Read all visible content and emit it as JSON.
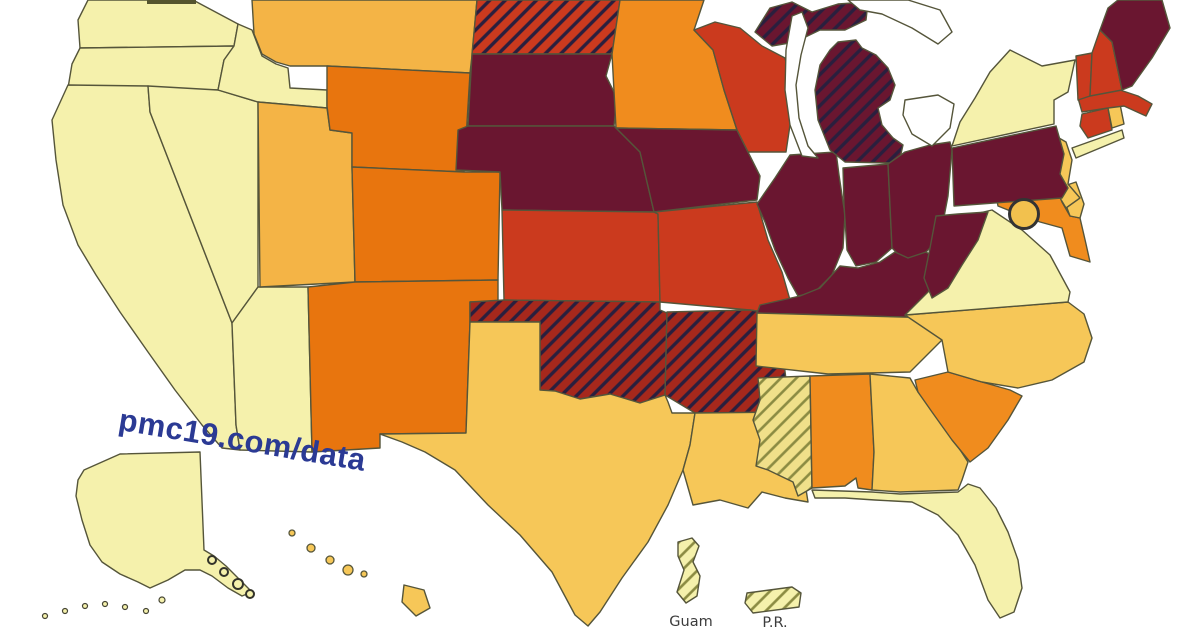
{
  "map_title": "United States choropleth map with territories",
  "watermark": {
    "text": "pmc19.com/data",
    "color": "#2B3A94"
  },
  "territories": {
    "guam": {
      "label": "Guam"
    },
    "pr": {
      "label": "P.R."
    }
  },
  "dc_marker": {
    "name": "District of Columbia",
    "fill": "#F2C14E",
    "stroke": "#333333"
  },
  "palette": {
    "pale_yellow": "#F5F1AC",
    "pale_gold": "#F0E08A",
    "gold": "#F6C758",
    "amber": "#F4B446",
    "orange": "#F08C1E",
    "dark_orange": "#E8750E",
    "red": "#CB3A1E",
    "dark_red": "#A6281C",
    "maroon": "#6A1630",
    "border": "#55553A",
    "hatch_dark": "#2A1F3E",
    "hatch_olive": "#8B8B42",
    "water": "#FFFFFF",
    "label": "#3C3C3C",
    "artifact": "#55552E"
  },
  "states": [
    {
      "id": "WA",
      "name": "Washington",
      "color_class": "pale_yellow",
      "hatched": false
    },
    {
      "id": "OR",
      "name": "Oregon",
      "color_class": "pale_yellow",
      "hatched": false
    },
    {
      "id": "CA",
      "name": "California",
      "color_class": "pale_yellow",
      "hatched": false
    },
    {
      "id": "NV",
      "name": "Nevada",
      "color_class": "pale_yellow",
      "hatched": false
    },
    {
      "id": "ID",
      "name": "Idaho",
      "color_class": "pale_yellow",
      "hatched": false
    },
    {
      "id": "AZ",
      "name": "Arizona",
      "color_class": "pale_yellow",
      "hatched": false
    },
    {
      "id": "MT",
      "name": "Montana",
      "color_class": "amber",
      "hatched": false
    },
    {
      "id": "UT",
      "name": "Utah",
      "color_class": "amber",
      "hatched": false
    },
    {
      "id": "WY",
      "name": "Wyoming",
      "color_class": "dark_orange",
      "hatched": false
    },
    {
      "id": "CO",
      "name": "Colorado",
      "color_class": "dark_orange",
      "hatched": false
    },
    {
      "id": "NM",
      "name": "New Mexico",
      "color_class": "dark_orange",
      "hatched": false
    },
    {
      "id": "ND",
      "name": "North Dakota",
      "color_class": "red",
      "hatched": true
    },
    {
      "id": "SD",
      "name": "South Dakota",
      "color_class": "maroon",
      "hatched": false
    },
    {
      "id": "NE",
      "name": "Nebraska",
      "color_class": "maroon",
      "hatched": false
    },
    {
      "id": "KS",
      "name": "Kansas",
      "color_class": "red",
      "hatched": false
    },
    {
      "id": "OK",
      "name": "Oklahoma",
      "color_class": "dark_red",
      "hatched": true
    },
    {
      "id": "TX",
      "name": "Texas",
      "color_class": "gold",
      "hatched": false
    },
    {
      "id": "MN",
      "name": "Minnesota",
      "color_class": "orange",
      "hatched": false
    },
    {
      "id": "IA",
      "name": "Iowa",
      "color_class": "maroon",
      "hatched": false
    },
    {
      "id": "MO",
      "name": "Missouri",
      "color_class": "red",
      "hatched": false
    },
    {
      "id": "AR",
      "name": "Arkansas",
      "color_class": "dark_red",
      "hatched": true
    },
    {
      "id": "LA",
      "name": "Louisiana",
      "color_class": "gold",
      "hatched": false
    },
    {
      "id": "WI",
      "name": "Wisconsin",
      "color_class": "red",
      "hatched": false
    },
    {
      "id": "IL",
      "name": "Illinois",
      "color_class": "maroon",
      "hatched": false
    },
    {
      "id": "MI",
      "name": "Michigan",
      "color_class": "maroon",
      "hatched": true
    },
    {
      "id": "IN",
      "name": "Indiana",
      "color_class": "maroon",
      "hatched": false
    },
    {
      "id": "OH",
      "name": "Ohio",
      "color_class": "maroon",
      "hatched": false
    },
    {
      "id": "KY",
      "name": "Kentucky",
      "color_class": "maroon",
      "hatched": false
    },
    {
      "id": "TN",
      "name": "Tennessee",
      "color_class": "gold",
      "hatched": false
    },
    {
      "id": "MS",
      "name": "Mississippi",
      "color_class": "pale_gold",
      "hatched": true
    },
    {
      "id": "AL",
      "name": "Alabama",
      "color_class": "orange",
      "hatched": false
    },
    {
      "id": "GA",
      "name": "Georgia",
      "color_class": "gold",
      "hatched": false
    },
    {
      "id": "FL",
      "name": "Florida",
      "color_class": "pale_yellow",
      "hatched": false
    },
    {
      "id": "SC",
      "name": "South Carolina",
      "color_class": "orange",
      "hatched": false
    },
    {
      "id": "NC",
      "name": "North Carolina",
      "color_class": "gold",
      "hatched": false
    },
    {
      "id": "VA",
      "name": "Virginia",
      "color_class": "pale_yellow",
      "hatched": false
    },
    {
      "id": "WV",
      "name": "West Virginia",
      "color_class": "maroon",
      "hatched": false
    },
    {
      "id": "MD",
      "name": "Maryland",
      "color_class": "orange",
      "hatched": false
    },
    {
      "id": "DE",
      "name": "Delaware",
      "color_class": "gold",
      "hatched": false
    },
    {
      "id": "NJ",
      "name": "New Jersey",
      "color_class": "gold",
      "hatched": false
    },
    {
      "id": "PA",
      "name": "Pennsylvania",
      "color_class": "maroon",
      "hatched": false
    },
    {
      "id": "NY",
      "name": "New York",
      "color_class": "pale_yellow",
      "hatched": false
    },
    {
      "id": "CT",
      "name": "Connecticut",
      "color_class": "red",
      "hatched": false
    },
    {
      "id": "RI",
      "name": "Rhode Island",
      "color_class": "gold",
      "hatched": false
    },
    {
      "id": "MA",
      "name": "Massachusetts",
      "color_class": "red",
      "hatched": false
    },
    {
      "id": "VT",
      "name": "Vermont",
      "color_class": "red",
      "hatched": false
    },
    {
      "id": "NH",
      "name": "New Hampshire",
      "color_class": "red",
      "hatched": false
    },
    {
      "id": "ME",
      "name": "Maine",
      "color_class": "maroon",
      "hatched": false
    },
    {
      "id": "AK",
      "name": "Alaska",
      "color_class": "pale_yellow",
      "hatched": false
    },
    {
      "id": "HI",
      "name": "Hawaii",
      "color_class": "gold",
      "hatched": false
    },
    {
      "id": "GU",
      "name": "Guam",
      "color_class": "pale_yellow",
      "hatched": true
    },
    {
      "id": "PR",
      "name": "Puerto Rico",
      "color_class": "pale_yellow",
      "hatched": true
    }
  ]
}
